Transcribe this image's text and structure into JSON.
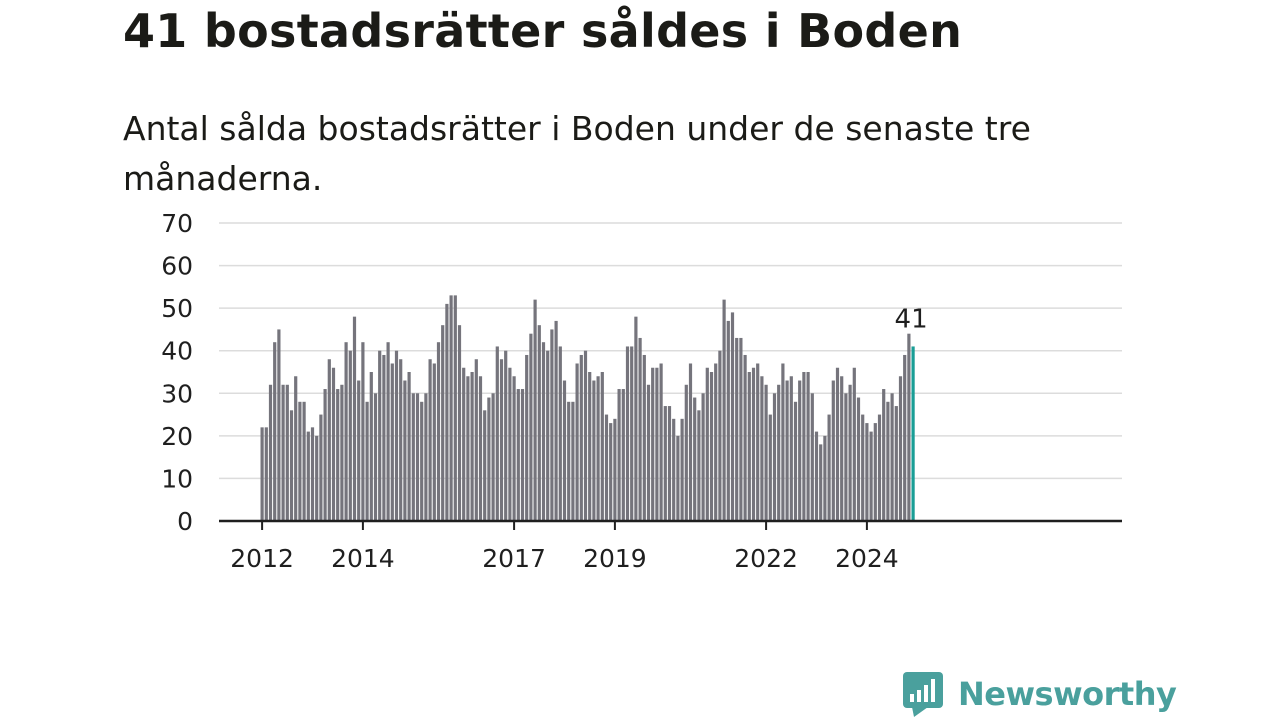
{
  "title": "41 bostadsrätter såldes i Boden",
  "subtitle": "Antal sålda bostadsrätter i Boden under de senaste tre månaderna.",
  "brand": {
    "name": "Newsworthy",
    "color": "#4aa09d",
    "icon": "newsworthy-chart-bubble-icon"
  },
  "chart_data": {
    "type": "bar",
    "title": "41 bostadsrätter såldes i Boden",
    "subtitle": "Antal sålda bostadsrätter i Boden under de senaste tre månaderna.",
    "xlabel": "",
    "ylabel": "",
    "ylim": [
      0,
      70
    ],
    "yticks": [
      0,
      10,
      20,
      30,
      40,
      50,
      60,
      70
    ],
    "xticks": [
      "2012",
      "2014",
      "2017",
      "2019",
      "2022",
      "2024"
    ],
    "grid": true,
    "bar_color": "#75747c",
    "highlight_color": "#1a9e96",
    "x_start": "2012-01",
    "frequency": "monthly",
    "highlight_label": "41",
    "values": [
      22,
      22,
      32,
      42,
      45,
      32,
      32,
      26,
      34,
      28,
      28,
      21,
      22,
      20,
      25,
      31,
      38,
      36,
      31,
      32,
      42,
      40,
      48,
      33,
      42,
      28,
      35,
      30,
      40,
      39,
      42,
      37,
      40,
      38,
      33,
      35,
      30,
      30,
      28,
      30,
      38,
      37,
      42,
      46,
      51,
      53,
      53,
      46,
      36,
      34,
      35,
      38,
      34,
      26,
      29,
      30,
      41,
      38,
      40,
      36,
      34,
      31,
      31,
      39,
      44,
      52,
      46,
      42,
      40,
      45,
      47,
      41,
      33,
      28,
      28,
      37,
      39,
      40,
      35,
      33,
      34,
      35,
      25,
      23,
      24,
      31,
      31,
      41,
      41,
      48,
      43,
      39,
      32,
      36,
      36,
      37,
      27,
      27,
      24,
      20,
      24,
      32,
      37,
      29,
      26,
      30,
      36,
      35,
      37,
      40,
      52,
      47,
      49,
      43,
      43,
      39,
      35,
      36,
      37,
      34,
      32,
      25,
      30,
      32,
      37,
      33,
      34,
      28,
      33,
      35,
      35,
      30,
      21,
      18,
      20,
      25,
      33,
      36,
      34,
      30,
      32,
      36,
      29,
      25,
      23,
      21,
      23,
      25,
      31,
      28,
      30,
      27,
      34,
      39,
      44,
      41
    ]
  }
}
